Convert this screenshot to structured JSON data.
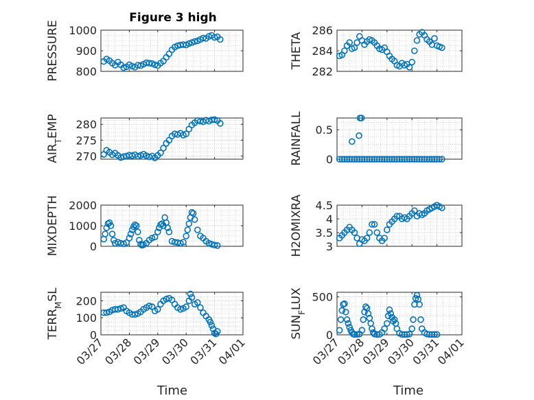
{
  "figure": {
    "title": "Figure 3 high",
    "xlabel": "Time"
  },
  "colors": {
    "marker": "#0072bd",
    "axes": "#262626"
  },
  "x_ticks": [
    "03/27",
    "03/28",
    "03/29",
    "03/30",
    "03/31",
    "04/01"
  ],
  "chart_data": [
    {
      "type": "scatter",
      "name": "PRESSURE",
      "ylabel": "PRESSURE",
      "ylim": [
        800,
        1000
      ],
      "yticks": [
        800,
        900,
        1000
      ],
      "grid": true,
      "xlim": [
        "03/27",
        "04/01"
      ],
      "x": [
        0.1,
        0.2,
        0.3,
        0.4,
        0.5,
        0.6,
        0.7,
        0.8,
        0.9,
        1.0,
        1.1,
        1.2,
        1.3,
        1.4,
        1.5,
        1.6,
        1.7,
        1.8,
        1.9,
        2.0,
        2.1,
        2.2,
        2.3,
        2.4,
        2.5,
        2.6,
        2.7,
        2.8,
        2.9,
        3.0,
        3.1,
        3.2,
        3.3,
        3.4,
        3.5,
        3.6,
        3.7,
        3.8,
        3.9,
        4.0,
        4.1,
        4.2
      ],
      "y": [
        848,
        860,
        852,
        840,
        830,
        845,
        832,
        818,
        822,
        832,
        825,
        820,
        830,
        828,
        835,
        842,
        840,
        838,
        832,
        828,
        840,
        850,
        868,
        885,
        905,
        918,
        925,
        928,
        930,
        928,
        935,
        940,
        945,
        948,
        955,
        962,
        960,
        970,
        975,
        965,
        968,
        955
      ]
    },
    {
      "type": "scatter",
      "name": "THETA",
      "ylabel": "THETA",
      "ylim": [
        282,
        286
      ],
      "yticks": [
        282,
        284,
        286
      ],
      "grid": true,
      "xlim": [
        "03/27",
        "04/01"
      ],
      "x": [
        0.1,
        0.2,
        0.3,
        0.4,
        0.5,
        0.6,
        0.7,
        0.8,
        0.9,
        1.0,
        1.1,
        1.2,
        1.3,
        1.4,
        1.5,
        1.6,
        1.7,
        1.8,
        1.9,
        2.0,
        2.1,
        2.2,
        2.3,
        2.4,
        2.5,
        2.6,
        2.7,
        2.8,
        2.9,
        3.0,
        3.1,
        3.2,
        3.3,
        3.4,
        3.5,
        3.6,
        3.7,
        3.8,
        3.9,
        4.0,
        4.1,
        4.2
      ],
      "y": [
        283.5,
        283.6,
        284.0,
        284.5,
        284.8,
        284.2,
        284.3,
        284.8,
        285.4,
        285.0,
        284.6,
        284.9,
        285.1,
        285.0,
        284.8,
        284.5,
        284.2,
        284.1,
        284.3,
        283.9,
        283.5,
        283.2,
        283.0,
        282.6,
        282.5,
        282.8,
        282.6,
        282.7,
        282.4,
        282.9,
        284.0,
        285.0,
        285.6,
        285.8,
        285.5,
        285.1,
        284.9,
        284.6,
        285.2,
        284.5,
        284.4,
        284.3
      ]
    },
    {
      "type": "scatter",
      "name": "AIR_TEMP",
      "ylabel": "AIR_TEMP",
      "ylim": [
        269,
        282
      ],
      "yticks": [
        270,
        275,
        280
      ],
      "grid": true,
      "xlim": [
        "03/27",
        "04/01"
      ],
      "x": [
        0.1,
        0.2,
        0.3,
        0.4,
        0.5,
        0.6,
        0.7,
        0.8,
        0.9,
        1.0,
        1.1,
        1.2,
        1.3,
        1.4,
        1.5,
        1.6,
        1.7,
        1.8,
        1.9,
        2.0,
        2.1,
        2.2,
        2.3,
        2.4,
        2.5,
        2.6,
        2.7,
        2.8,
        2.9,
        3.0,
        3.1,
        3.2,
        3.3,
        3.4,
        3.5,
        3.6,
        3.7,
        3.8,
        3.9,
        4.0,
        4.1,
        4.2
      ],
      "y": [
        270.5,
        271.8,
        271.2,
        270.4,
        270.9,
        270.2,
        269.5,
        269.8,
        270.0,
        270.3,
        270.1,
        270.4,
        269.9,
        270.2,
        270.6,
        270.1,
        269.7,
        270.0,
        269.4,
        270.2,
        271.0,
        272.5,
        274.0,
        275.0,
        276.3,
        277.0,
        276.8,
        277.2,
        276.6,
        277.0,
        278.5,
        279.8,
        280.5,
        281.2,
        281.0,
        280.8,
        281.3,
        281.0,
        281.4,
        281.5,
        281.2,
        280.3
      ]
    },
    {
      "type": "scatter",
      "name": "RAINFALL",
      "ylabel": "RAINFALL",
      "ylim": [
        0,
        0.7
      ],
      "yticks": [
        0,
        0.5
      ],
      "grid": true,
      "xlim": [
        "03/27",
        "04/01"
      ],
      "x": [
        0.1,
        0.2,
        0.3,
        0.4,
        0.5,
        0.6,
        0.7,
        0.8,
        0.9,
        1.0,
        1.1,
        1.2,
        1.3,
        1.4,
        1.5,
        1.6,
        1.7,
        1.8,
        1.9,
        2.0,
        2.1,
        2.2,
        2.3,
        2.4,
        2.5,
        2.6,
        2.7,
        2.8,
        2.9,
        3.0,
        3.1,
        3.2,
        3.3,
        3.4,
        3.5,
        3.6,
        3.7,
        3.8,
        3.9,
        4.0,
        4.1,
        4.2,
        0.6,
        0.88,
        0.92,
        0.98
      ],
      "y": [
        0,
        0,
        0,
        0,
        0,
        0,
        0,
        0,
        0,
        0,
        0,
        0,
        0,
        0,
        0,
        0,
        0,
        0,
        0,
        0,
        0,
        0,
        0,
        0,
        0,
        0,
        0,
        0,
        0,
        0,
        0,
        0,
        0,
        0,
        0,
        0,
        0,
        0,
        0,
        0,
        0,
        0,
        0.3,
        0.4,
        0.7,
        0.7
      ]
    },
    {
      "type": "scatter",
      "name": "MIXDEPTH",
      "ylabel": "MIXDEPTH",
      "ylim": [
        0,
        2000
      ],
      "yticks": [
        0,
        1000,
        2000
      ],
      "grid": true,
      "xlim": [
        "03/27",
        "04/01"
      ],
      "x": [
        0.1,
        0.15,
        0.2,
        0.25,
        0.3,
        0.35,
        0.4,
        0.45,
        0.5,
        0.6,
        0.7,
        0.8,
        0.9,
        1.0,
        1.05,
        1.1,
        1.15,
        1.2,
        1.25,
        1.3,
        1.35,
        1.4,
        1.45,
        1.5,
        1.6,
        1.7,
        1.8,
        1.9,
        2.0,
        2.05,
        2.1,
        2.15,
        2.2,
        2.25,
        2.3,
        2.35,
        2.4,
        2.5,
        2.6,
        2.7,
        2.8,
        2.9,
        3.0,
        3.05,
        3.1,
        3.15,
        3.2,
        3.25,
        3.3,
        3.4,
        3.5,
        3.6,
        3.7,
        3.8,
        3.9,
        4.0,
        4.1
      ],
      "y": [
        350,
        600,
        900,
        1100,
        1150,
        1000,
        600,
        300,
        150,
        200,
        150,
        120,
        180,
        400,
        600,
        800,
        950,
        1050,
        1000,
        700,
        300,
        100,
        50,
        80,
        150,
        300,
        400,
        450,
        700,
        900,
        1050,
        1100,
        1000,
        1400,
        1150,
        900,
        700,
        250,
        200,
        180,
        150,
        200,
        500,
        800,
        1100,
        1400,
        1650,
        1600,
        1300,
        800,
        500,
        400,
        250,
        150,
        100,
        60,
        40
      ]
    },
    {
      "type": "scatter",
      "name": "H2OMIXRA",
      "ylabel": "H2OMIXRA",
      "ylim": [
        3,
        4.5
      ],
      "yticks": [
        3,
        3.5,
        4,
        4.5
      ],
      "grid": true,
      "xlim": [
        "03/27",
        "04/01"
      ],
      "x": [
        0.1,
        0.2,
        0.3,
        0.4,
        0.5,
        0.6,
        0.7,
        0.8,
        0.9,
        1.0,
        1.1,
        1.2,
        1.3,
        1.4,
        1.5,
        1.6,
        1.7,
        1.8,
        1.9,
        2.0,
        2.1,
        2.2,
        2.3,
        2.4,
        2.5,
        2.6,
        2.7,
        2.8,
        2.9,
        3.0,
        3.1,
        3.2,
        3.3,
        3.4,
        3.5,
        3.6,
        3.7,
        3.8,
        3.9,
        4.0,
        4.1,
        4.2
      ],
      "y": [
        3.3,
        3.4,
        3.5,
        3.6,
        3.7,
        3.6,
        3.5,
        3.3,
        3.1,
        3.25,
        3.2,
        3.3,
        3.5,
        3.8,
        3.8,
        3.5,
        3.3,
        3.2,
        3.3,
        3.6,
        3.8,
        3.9,
        4.0,
        4.1,
        4.1,
        4.0,
        4.05,
        4.0,
        4.1,
        4.2,
        4.3,
        4.1,
        4.2,
        4.15,
        4.2,
        4.3,
        4.35,
        4.4,
        4.45,
        4.5,
        4.45,
        4.4
      ]
    },
    {
      "type": "scatter",
      "name": "TERR_MSL",
      "ylabel": "TERR_MSL",
      "ylim": [
        0,
        250
      ],
      "yticks": [
        0,
        100,
        200
      ],
      "grid": true,
      "xlim": [
        "03/27",
        "04/01"
      ],
      "x": [
        0.1,
        0.2,
        0.3,
        0.4,
        0.5,
        0.6,
        0.7,
        0.8,
        0.9,
        1.0,
        1.1,
        1.2,
        1.3,
        1.4,
        1.5,
        1.6,
        1.7,
        1.8,
        1.9,
        2.0,
        2.1,
        2.2,
        2.3,
        2.4,
        2.5,
        2.6,
        2.7,
        2.8,
        2.9,
        3.0,
        3.1,
        3.15,
        3.2,
        3.3,
        3.4,
        3.5,
        3.6,
        3.7,
        3.8,
        3.85,
        3.9,
        3.95,
        4.0,
        4.05,
        4.1
      ],
      "y": [
        130,
        130,
        135,
        145,
        150,
        150,
        155,
        160,
        140,
        130,
        120,
        120,
        125,
        135,
        150,
        160,
        170,
        165,
        140,
        150,
        180,
        200,
        210,
        215,
        205,
        180,
        160,
        150,
        155,
        165,
        200,
        240,
        220,
        180,
        190,
        160,
        130,
        110,
        90,
        75,
        55,
        35,
        10,
        5,
        20
      ]
    },
    {
      "type": "scatter",
      "name": "SUN_FLUX",
      "ylabel": "SUN_FLUX",
      "ylim": [
        0,
        560
      ],
      "yticks": [
        0,
        500
      ],
      "grid": true,
      "xlim": [
        "03/27",
        "04/01"
      ],
      "x": [
        0.1,
        0.15,
        0.2,
        0.25,
        0.3,
        0.35,
        0.4,
        0.45,
        0.5,
        0.55,
        0.6,
        0.65,
        0.7,
        0.8,
        0.9,
        1.0,
        1.05,
        1.1,
        1.15,
        1.2,
        1.25,
        1.3,
        1.35,
        1.4,
        1.45,
        1.5,
        1.6,
        1.7,
        1.8,
        1.9,
        2.0,
        2.05,
        2.1,
        2.15,
        2.2,
        2.25,
        2.3,
        2.35,
        2.4,
        2.5,
        2.6,
        2.7,
        2.8,
        2.9,
        3.0,
        3.05,
        3.1,
        3.15,
        3.2,
        3.25,
        3.3,
        3.35,
        3.4,
        3.5,
        3.6,
        3.7,
        3.8,
        3.9,
        4.0
      ],
      "y": [
        60,
        200,
        320,
        400,
        410,
        300,
        200,
        150,
        100,
        60,
        30,
        10,
        5,
        5,
        10,
        60,
        200,
        300,
        370,
        350,
        280,
        220,
        150,
        80,
        30,
        10,
        5,
        5,
        30,
        80,
        150,
        250,
        330,
        280,
        230,
        180,
        200,
        150,
        80,
        20,
        5,
        5,
        5,
        10,
        80,
        200,
        400,
        480,
        520,
        470,
        400,
        200,
        80,
        30,
        10,
        5,
        5,
        5,
        5
      ]
    }
  ]
}
